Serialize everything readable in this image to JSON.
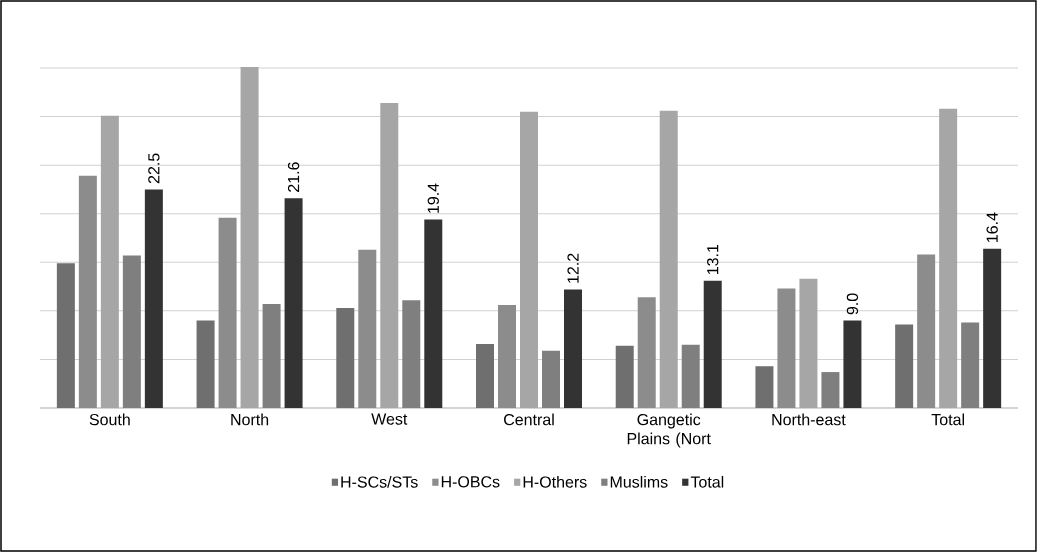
{
  "chart_data": {
    "type": "bar",
    "categories": [
      "South",
      "North",
      "West",
      "Central",
      "Gangetic Plains (Nort",
      "North-east",
      "Total"
    ],
    "series": [
      {
        "name": "H-SCs/STs",
        "color": "#6f6f6f",
        "values": [
          14.9,
          9.0,
          10.3,
          6.6,
          6.4,
          4.3,
          8.6
        ]
      },
      {
        "name": "H-OBCs",
        "color": "#8c8c8c",
        "values": [
          23.9,
          19.6,
          16.3,
          10.6,
          11.4,
          12.3,
          15.8
        ]
      },
      {
        "name": "H-Others",
        "color": "#a6a6a6",
        "values": [
          30.1,
          35.1,
          31.4,
          30.5,
          30.6,
          13.3,
          30.8
        ]
      },
      {
        "name": "Muslims",
        "color": "#7f7f7f",
        "values": [
          15.7,
          10.7,
          11.1,
          5.9,
          6.5,
          3.7,
          8.8
        ]
      },
      {
        "name": "Total",
        "color": "#333333",
        "values": [
          22.5,
          21.6,
          19.4,
          12.2,
          13.1,
          9.0,
          16.4
        ],
        "value_labels": [
          "22.5",
          "21.6",
          "19.4",
          "12.2",
          "13.1",
          "9.0",
          "16.4"
        ]
      }
    ],
    "grid": "y",
    "legend": "bottom",
    "tick_labels": "x"
  }
}
